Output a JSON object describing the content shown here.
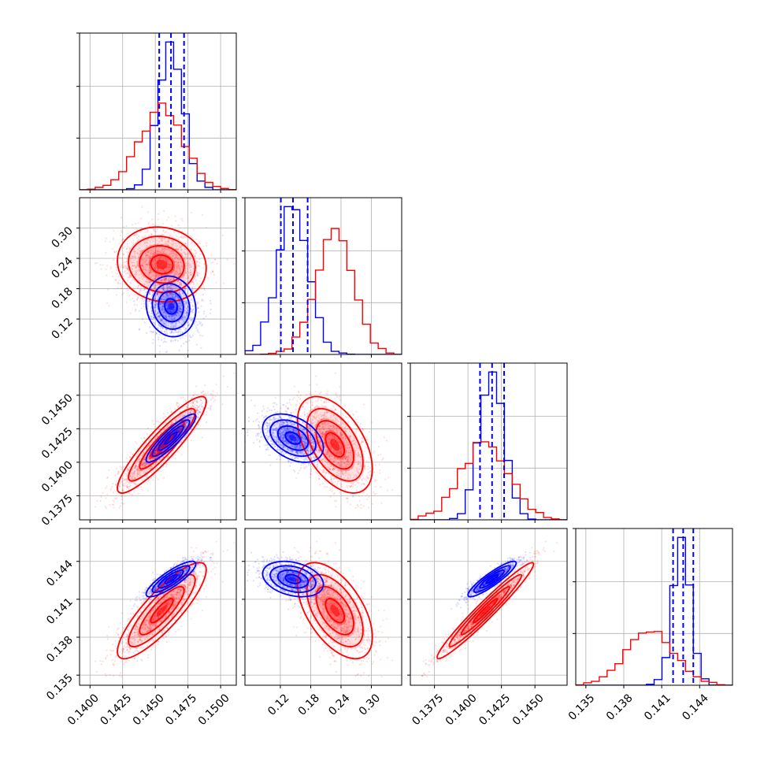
{
  "chart_data": {
    "type": "corner",
    "parameters": [
      {
        "range": [
          0.1392,
          0.1512
        ],
        "ticks": [
          0.14,
          0.1425,
          0.145,
          0.1475,
          0.15
        ],
        "tick_labels": [
          "0.1400",
          "0.1425",
          "0.1450",
          "0.1475",
          "0.1500"
        ]
      },
      {
        "range": [
          0.05,
          0.36
        ],
        "ticks": [
          0.12,
          0.18,
          0.24,
          0.3
        ],
        "tick_labels": [
          "0.12",
          "0.18",
          "0.24",
          "0.30"
        ]
      },
      {
        "range": [
          0.1357,
          0.1474
        ],
        "ticks": [
          0.1375,
          0.14,
          0.1425,
          0.145
        ],
        "tick_labels": [
          "0.1375",
          "0.1400",
          "0.1425",
          "0.1450"
        ]
      },
      {
        "range": [
          0.1342,
          0.1466
        ],
        "ticks": [
          0.135,
          0.138,
          0.141,
          0.144
        ],
        "tick_labels": [
          "0.135",
          "0.138",
          "0.141",
          "0.144"
        ]
      }
    ],
    "series": [
      {
        "color": "#ff0000",
        "mean": [
          0.1455,
          0.228,
          0.1413,
          0.1401
        ],
        "std": [
          0.0017,
          0.037,
          0.0018,
          0.0019
        ],
        "corr": [
          [
            1.0,
            -0.1,
            0.9,
            0.85
          ],
          [
            -0.1,
            1.0,
            -0.5,
            -0.55
          ],
          [
            0.9,
            -0.5,
            1.0,
            0.97
          ],
          [
            0.85,
            -0.55,
            0.97,
            1.0
          ]
        ]
      },
      {
        "color": "#0000ff",
        "mean": [
          0.1462,
          0.145,
          0.1418,
          0.1426
        ],
        "std": [
          0.00095,
          0.03,
          0.0009,
          0.0007
        ],
        "corr": [
          [
            1.0,
            -0.1,
            0.9,
            0.85
          ],
          [
            -0.1,
            1.0,
            -0.4,
            -0.3
          ],
          [
            0.9,
            -0.4,
            1.0,
            0.9
          ],
          [
            0.85,
            -0.3,
            0.9,
            1.0
          ]
        ],
        "quantiles": [
          [
            0.1453,
            0.1462,
            0.1472
          ],
          [
            0.121,
            0.145,
            0.174
          ],
          [
            0.1409,
            0.1418,
            0.1427
          ],
          [
            0.1419,
            0.1427,
            0.1435
          ]
        ]
      }
    ],
    "grid": true
  }
}
